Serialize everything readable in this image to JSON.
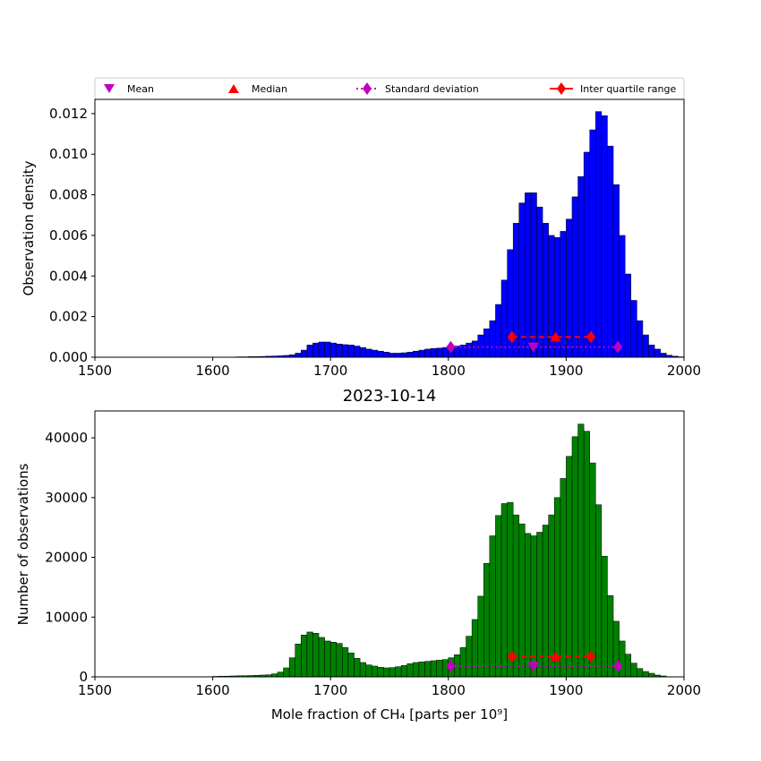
{
  "chart_data": [
    {
      "type": "bar",
      "panel": "top",
      "title": "",
      "xlabel": "",
      "ylabel": "Observation density",
      "xlim": [
        1500,
        2000
      ],
      "ylim": [
        0,
        0.0127
      ],
      "xticks": [
        1500,
        1600,
        1700,
        1800,
        1900,
        2000
      ],
      "yticks": [
        0.0,
        0.002,
        0.004,
        0.006,
        0.008,
        0.01,
        0.012
      ],
      "ytick_labels": [
        "0.000",
        "0.002",
        "0.004",
        "0.006",
        "0.008",
        "0.010",
        "0.012"
      ],
      "bar_color": "#0000ff",
      "bin_width": 5,
      "bins_start": 1615,
      "values": [
        1e-05,
        2e-05,
        2e-05,
        3e-05,
        3e-05,
        4e-05,
        5e-05,
        6e-05,
        7e-05,
        9e-05,
        0.00012,
        0.0002,
        0.00035,
        0.0006,
        0.0007,
        0.00075,
        0.00075,
        0.0007,
        0.00065,
        0.00062,
        0.0006,
        0.00055,
        0.00048,
        0.0004,
        0.00035,
        0.0003,
        0.00025,
        0.0002,
        0.0002,
        0.00022,
        0.00025,
        0.0003,
        0.00035,
        0.0004,
        0.00043,
        0.00045,
        0.00048,
        0.0005,
        0.00055,
        0.0006,
        0.0007,
        0.0008,
        0.0011,
        0.0014,
        0.0018,
        0.0026,
        0.0038,
        0.0053,
        0.0066,
        0.0076,
        0.0081,
        0.0081,
        0.0074,
        0.0066,
        0.006,
        0.0059,
        0.0062,
        0.0068,
        0.0079,
        0.0089,
        0.0101,
        0.0112,
        0.0121,
        0.0119,
        0.0104,
        0.0085,
        0.006,
        0.0041,
        0.0028,
        0.0018,
        0.0011,
        0.0006,
        0.0004,
        0.0002,
        0.0001,
        5e-05,
        2e-05
      ],
      "markers": {
        "mean": {
          "x": 1872,
          "y": 0.0005
        },
        "median": {
          "x": 1891,
          "y": 0.001
        },
        "std": {
          "x": [
            1802,
            1944
          ],
          "y": 0.0005
        },
        "iqr": {
          "x": [
            1854,
            1921
          ],
          "y": 0.001
        }
      }
    },
    {
      "type": "bar",
      "panel": "bottom",
      "title": "2023-10-14",
      "xlabel": "Mole fraction of CH₄ [parts per 10⁹]",
      "ylabel": "Number of observations",
      "xlim": [
        1500,
        2000
      ],
      "ylim": [
        0,
        44500
      ],
      "xticks": [
        1500,
        1600,
        1700,
        1800,
        1900,
        2000
      ],
      "yticks": [
        0,
        10000,
        20000,
        30000,
        40000
      ],
      "ytick_labels": [
        "0",
        "10000",
        "20000",
        "30000",
        "40000"
      ],
      "bar_color": "#008000",
      "bin_width": 5,
      "bins_start": 1600,
      "values": [
        80,
        100,
        120,
        150,
        180,
        200,
        220,
        260,
        300,
        350,
        500,
        800,
        1500,
        3200,
        5500,
        7000,
        7500,
        7300,
        6600,
        6000,
        5800,
        5600,
        4900,
        4000,
        3100,
        2400,
        2000,
        1800,
        1600,
        1500,
        1550,
        1700,
        1900,
        2200,
        2400,
        2500,
        2600,
        2700,
        2800,
        2900,
        3200,
        3700,
        4900,
        6800,
        9600,
        13500,
        19000,
        23600,
        27000,
        29000,
        29200,
        27100,
        25600,
        24000,
        23600,
        24200,
        25400,
        27100,
        30000,
        33200,
        36900,
        40200,
        42300,
        41100,
        35800,
        28800,
        20200,
        13600,
        9300,
        6000,
        3800,
        2300,
        1400,
        900,
        600,
        300,
        150
      ],
      "markers": {
        "mean": {
          "x": 1872,
          "y": 1800
        },
        "median": {
          "x": 1891,
          "y": 3400
        },
        "std": {
          "x": [
            1802,
            1944
          ],
          "y": 1800
        },
        "iqr": {
          "x": [
            1854,
            1921
          ],
          "y": 3400
        }
      }
    }
  ],
  "legend": {
    "placement": "top",
    "entries": [
      {
        "label": "Mean",
        "marker": "triangle-down",
        "color": "#bf00bf"
      },
      {
        "label": "Median",
        "marker": "triangle-up",
        "color": "#ff0000"
      },
      {
        "label": "Standard deviation",
        "marker": "diamond-dotted",
        "color": "#bf00bf"
      },
      {
        "label": "Inter quartile range",
        "marker": "diamond-dashed",
        "color": "#ff0000"
      }
    ]
  },
  "colors": {
    "mean": "#bf00bf",
    "median": "#ff0000",
    "std": "#bf00bf",
    "iqr": "#ff0000"
  }
}
